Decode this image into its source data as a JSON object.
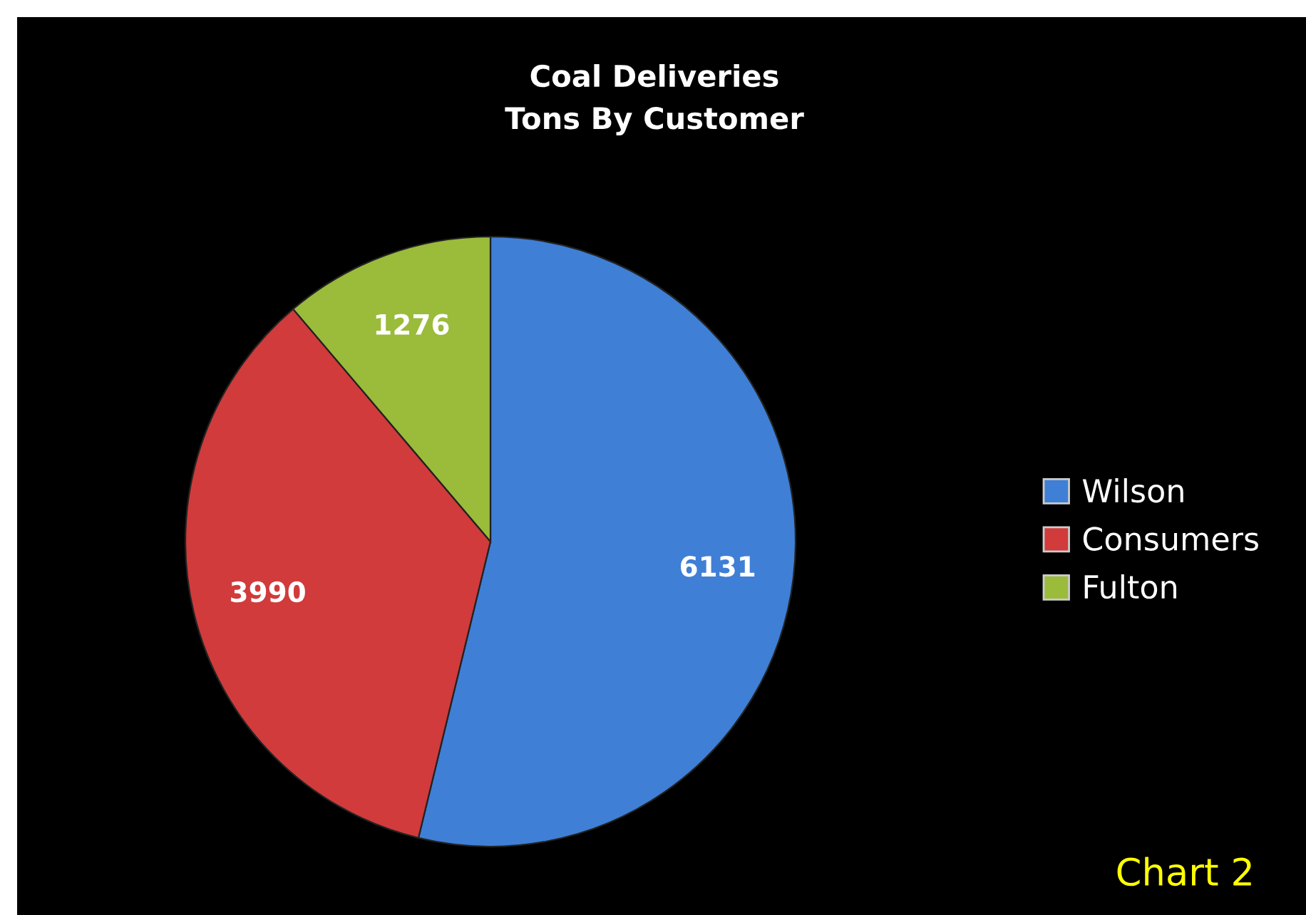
{
  "chart_data": {
    "type": "pie",
    "title": "Coal Deliveries\nTons By Customer",
    "categories": [
      "Wilson",
      "Consumers",
      "Fulton"
    ],
    "values": [
      6131,
      3990,
      1276
    ],
    "colors": [
      "#3f7fd6",
      "#d13b3b",
      "#9bbb3b"
    ],
    "data_labels": true,
    "legend": "right",
    "annotations": [
      "Chart 2"
    ]
  }
}
